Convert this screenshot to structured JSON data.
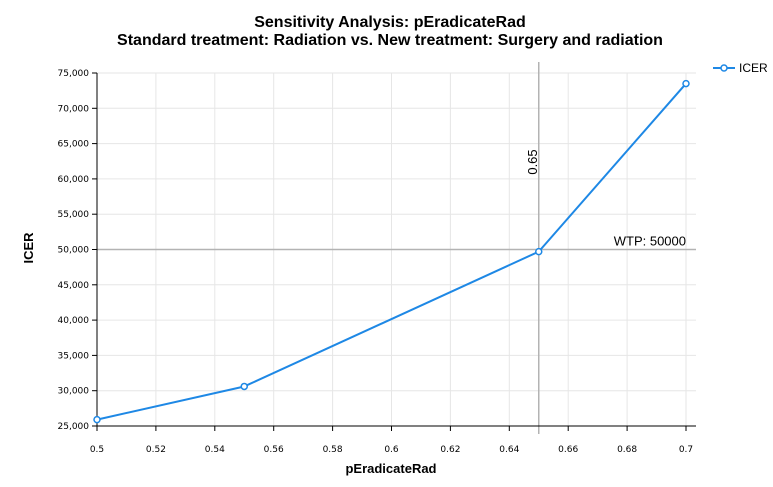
{
  "chart_data": {
    "type": "line",
    "title": "Sensitivity Analysis: pEradicateRad",
    "subtitle": "Standard treatment: Radiation vs. New treatment: Surgery and radiation",
    "xlabel": "pEradicateRad",
    "ylabel": "ICER",
    "xlim": [
      0.5,
      0.7
    ],
    "ylim": [
      25000,
      75000
    ],
    "x_ticks": [
      0.5,
      0.52,
      0.54,
      0.56,
      0.58,
      0.6,
      0.62,
      0.64,
      0.66,
      0.68,
      0.7
    ],
    "x_tick_labels": [
      "0.5",
      "0.52",
      "0.54",
      "0.56",
      "0.58",
      "0.6",
      "0.62",
      "0.64",
      "0.66",
      "0.68",
      "0.7"
    ],
    "y_ticks": [
      25000,
      30000,
      35000,
      40000,
      45000,
      50000,
      55000,
      60000,
      65000,
      70000,
      75000
    ],
    "y_tick_labels": [
      "25,000",
      "30,000",
      "35,000",
      "40,000",
      "45,000",
      "50,000",
      "55,000",
      "60,000",
      "65,000",
      "70,000",
      "75,000"
    ],
    "grid": true,
    "legend_position": "top-right",
    "series": [
      {
        "name": "ICER",
        "color": "#1e88e5",
        "x": [
          0.5,
          0.55,
          0.65,
          0.7
        ],
        "y": [
          25900,
          30600,
          49700,
          73500
        ]
      }
    ],
    "annotations": {
      "wtp": {
        "label": "WTP: 50000",
        "value": 50000
      },
      "threshold": {
        "label": "0.65",
        "value": 0.65
      }
    }
  }
}
